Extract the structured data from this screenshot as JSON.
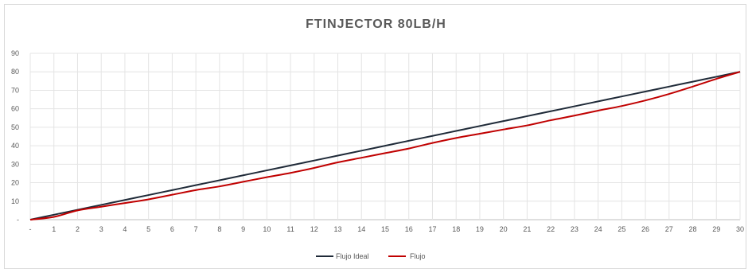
{
  "chart_data": {
    "type": "line",
    "title": "FTINJECTOR 80LB/H",
    "xlabel": "",
    "ylabel": "",
    "x": [
      "-",
      "1",
      "2",
      "3",
      "4",
      "5",
      "6",
      "7",
      "8",
      "9",
      "10",
      "11",
      "12",
      "13",
      "14",
      "15",
      "16",
      "17",
      "18",
      "19",
      "20",
      "21",
      "22",
      "23",
      "24",
      "25",
      "26",
      "27",
      "28",
      "29",
      "30"
    ],
    "y_ticks": [
      "-",
      "10",
      "20",
      "30",
      "40",
      "50",
      "60",
      "70",
      "80",
      "90"
    ],
    "ylim": [
      0,
      90
    ],
    "grid": true,
    "legend_position": "bottom",
    "series": [
      {
        "name": "Flujo Ideal",
        "color": "#1f2a38",
        "values": [
          0,
          2.67,
          5.33,
          8,
          10.67,
          13.33,
          16,
          18.67,
          21.33,
          24,
          26.67,
          29.33,
          32,
          34.67,
          37.33,
          40,
          42.67,
          45.33,
          48,
          50.67,
          53.33,
          56,
          58.67,
          61.33,
          64,
          66.67,
          69.33,
          72,
          74.67,
          77.33,
          80
        ]
      },
      {
        "name": "Flujo",
        "color": "#c00000",
        "values": [
          0,
          1.5,
          5,
          7,
          9,
          11,
          13.5,
          16,
          18,
          20.5,
          23,
          25.3,
          28,
          31,
          33.5,
          36,
          38.5,
          41.5,
          44.2,
          46.5,
          48.8,
          51,
          53.8,
          56.3,
          59,
          61.5,
          64.5,
          68,
          72,
          76.2,
          80
        ]
      }
    ]
  }
}
